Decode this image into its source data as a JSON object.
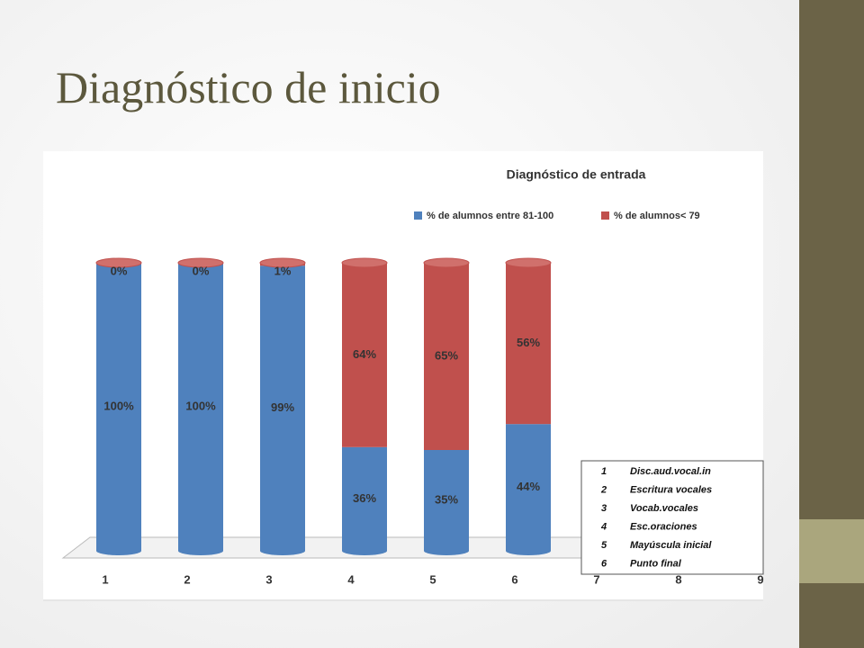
{
  "page_title": "Diagnóstico de inicio",
  "chart_data": {
    "type": "stacked-cylinder-bar",
    "title": "Diagnóstico de entrada",
    "categories": [
      "1",
      "2",
      "3",
      "4",
      "5",
      "6",
      "7",
      "8",
      "9"
    ],
    "ylim": [
      0,
      100
    ],
    "series": [
      {
        "name": "% de alumnos entre 81-100",
        "color": "#4f81bd",
        "values": [
          100,
          100,
          99,
          36,
          35,
          44,
          null,
          null,
          null
        ],
        "value_labels": [
          "100%",
          "100%",
          "99%",
          "36%",
          "35%",
          "44%",
          null,
          null,
          null
        ]
      },
      {
        "name": "% de alumnos< 79",
        "color": "#c0504d",
        "values": [
          0,
          0,
          1,
          64,
          65,
          56,
          null,
          null,
          null
        ],
        "value_labels": [
          "0%",
          "0%",
          "1%",
          "64%",
          "65%",
          "56%",
          null,
          null,
          null
        ]
      }
    ],
    "data_table": {
      "rows": [
        [
          "1",
          "Disc.aud.vocal.in"
        ],
        [
          "2",
          "Escritura vocales"
        ],
        [
          "3",
          "Vocab.vocales"
        ],
        [
          "4",
          "Esc.oraciones"
        ],
        [
          "5",
          "Mayúscula inicial"
        ],
        [
          "6",
          "Punto final"
        ]
      ]
    }
  }
}
